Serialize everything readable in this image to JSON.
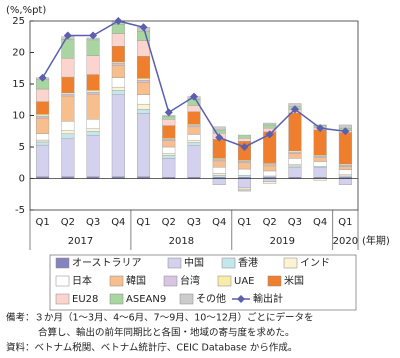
{
  "chart_data": {
    "type": "bar",
    "stacked": true,
    "y_label": "(%,%pt)",
    "x_label": "(年期)",
    "categories": [
      "Q1",
      "Q2",
      "Q3",
      "Q4",
      "Q1",
      "Q2",
      "Q3",
      "Q4",
      "Q1",
      "Q2",
      "Q3",
      "Q4",
      "Q1"
    ],
    "groups": [
      {
        "label": "2017",
        "span": 4
      },
      {
        "label": "2018",
        "span": 4
      },
      {
        "label": "2019",
        "span": 4
      },
      {
        "label": "2020",
        "span": 1
      }
    ],
    "ylim": [
      -5,
      25
    ],
    "yticks": [
      -5,
      0,
      5,
      10,
      15,
      20,
      25
    ],
    "series": [
      {
        "name": "オーストラリア",
        "color": "#8583bd",
        "values": [
          0.3,
          0.3,
          0.3,
          0.3,
          0.3,
          0.2,
          0.2,
          0.2,
          0.2,
          0.2,
          0.2,
          0.2,
          0.2
        ]
      },
      {
        "name": "中国",
        "color": "#d3d1ee",
        "values": [
          5,
          6,
          6.5,
          13,
          10,
          3,
          5,
          -1,
          -1.5,
          -0.5,
          1.5,
          1.5,
          -1
        ]
      },
      {
        "name": "香港",
        "color": "#c5e6ea",
        "values": [
          0.5,
          0.8,
          0.7,
          0.7,
          0.7,
          0.5,
          0.5,
          0.3,
          0.3,
          0.2,
          0.3,
          0.2,
          0.2
        ]
      },
      {
        "name": "インド",
        "color": "#fbf3d2",
        "values": [
          0.3,
          0.5,
          0.4,
          0.5,
          0.8,
          0.3,
          0.3,
          0.3,
          -0.3,
          -0.3,
          0.2,
          -0.3,
          0.2
        ]
      },
      {
        "name": "日本",
        "color": "#ffffff",
        "values": [
          1,
          1.5,
          1.5,
          1.5,
          1.5,
          1,
          1,
          1,
          1,
          0.8,
          1,
          0.8,
          0.8
        ]
      },
      {
        "name": "韓国",
        "color": "#f8bf8e",
        "values": [
          2.5,
          4,
          4,
          2,
          2,
          1,
          1.2,
          1,
          1,
          0.8,
          0.8,
          0.6,
          0.5
        ]
      },
      {
        "name": "台湾",
        "color": "#d8c5e2",
        "values": [
          0.3,
          0.3,
          0.3,
          0.3,
          0.3,
          0.2,
          0.2,
          0.2,
          0.2,
          0.2,
          0.2,
          0.2,
          0.2
        ]
      },
      {
        "name": "UAE",
        "color": "#f8eca8",
        "values": [
          0.3,
          0.2,
          0.3,
          0.2,
          0.3,
          0.2,
          0.2,
          0.2,
          0.2,
          0.2,
          0.2,
          0.2,
          0.2
        ]
      },
      {
        "name": "米国",
        "color": "#ef7f2c",
        "values": [
          2,
          2.5,
          2.5,
          2.5,
          3.5,
          2,
          2,
          3,
          3,
          5,
          6,
          4,
          5
        ]
      },
      {
        "name": "EU28",
        "color": "#fbd5cd",
        "values": [
          2,
          3,
          3,
          2,
          2.5,
          1,
          1,
          1,
          0.5,
          0.6,
          0.5,
          0.4,
          0.3
        ]
      },
      {
        "name": "ASEAN9",
        "color": "#a9d6a0",
        "values": [
          1.5,
          3,
          2.5,
          1.5,
          1.5,
          0.5,
          1,
          0.5,
          0.5,
          0.5,
          0.5,
          0.3,
          0.4
        ]
      },
      {
        "name": "その他",
        "color": "#cccccc",
        "values": [
          0.3,
          0.4,
          0.3,
          0.5,
          0.6,
          0.1,
          0.4,
          0.5,
          -0.2,
          0.3,
          0.5,
          0.1,
          0.5
        ]
      },
      {
        "name": "輸出計",
        "color": "#5a5fae",
        "type": "line",
        "values": [
          16,
          22.7,
          22.7,
          25,
          24,
          10.5,
          13,
          6.5,
          5,
          7,
          11,
          8,
          7.5
        ]
      }
    ]
  },
  "notes": [
    "備考：３か月（1～3月、4～6月、7～9月、10～12月）ごとにデータを",
    "合算し、輸出の前年同期比と各国・地域の寄与度を求めた。",
    "資料：ベトナム税関、ベトナム統計庁、CEIC Database から作成。"
  ]
}
